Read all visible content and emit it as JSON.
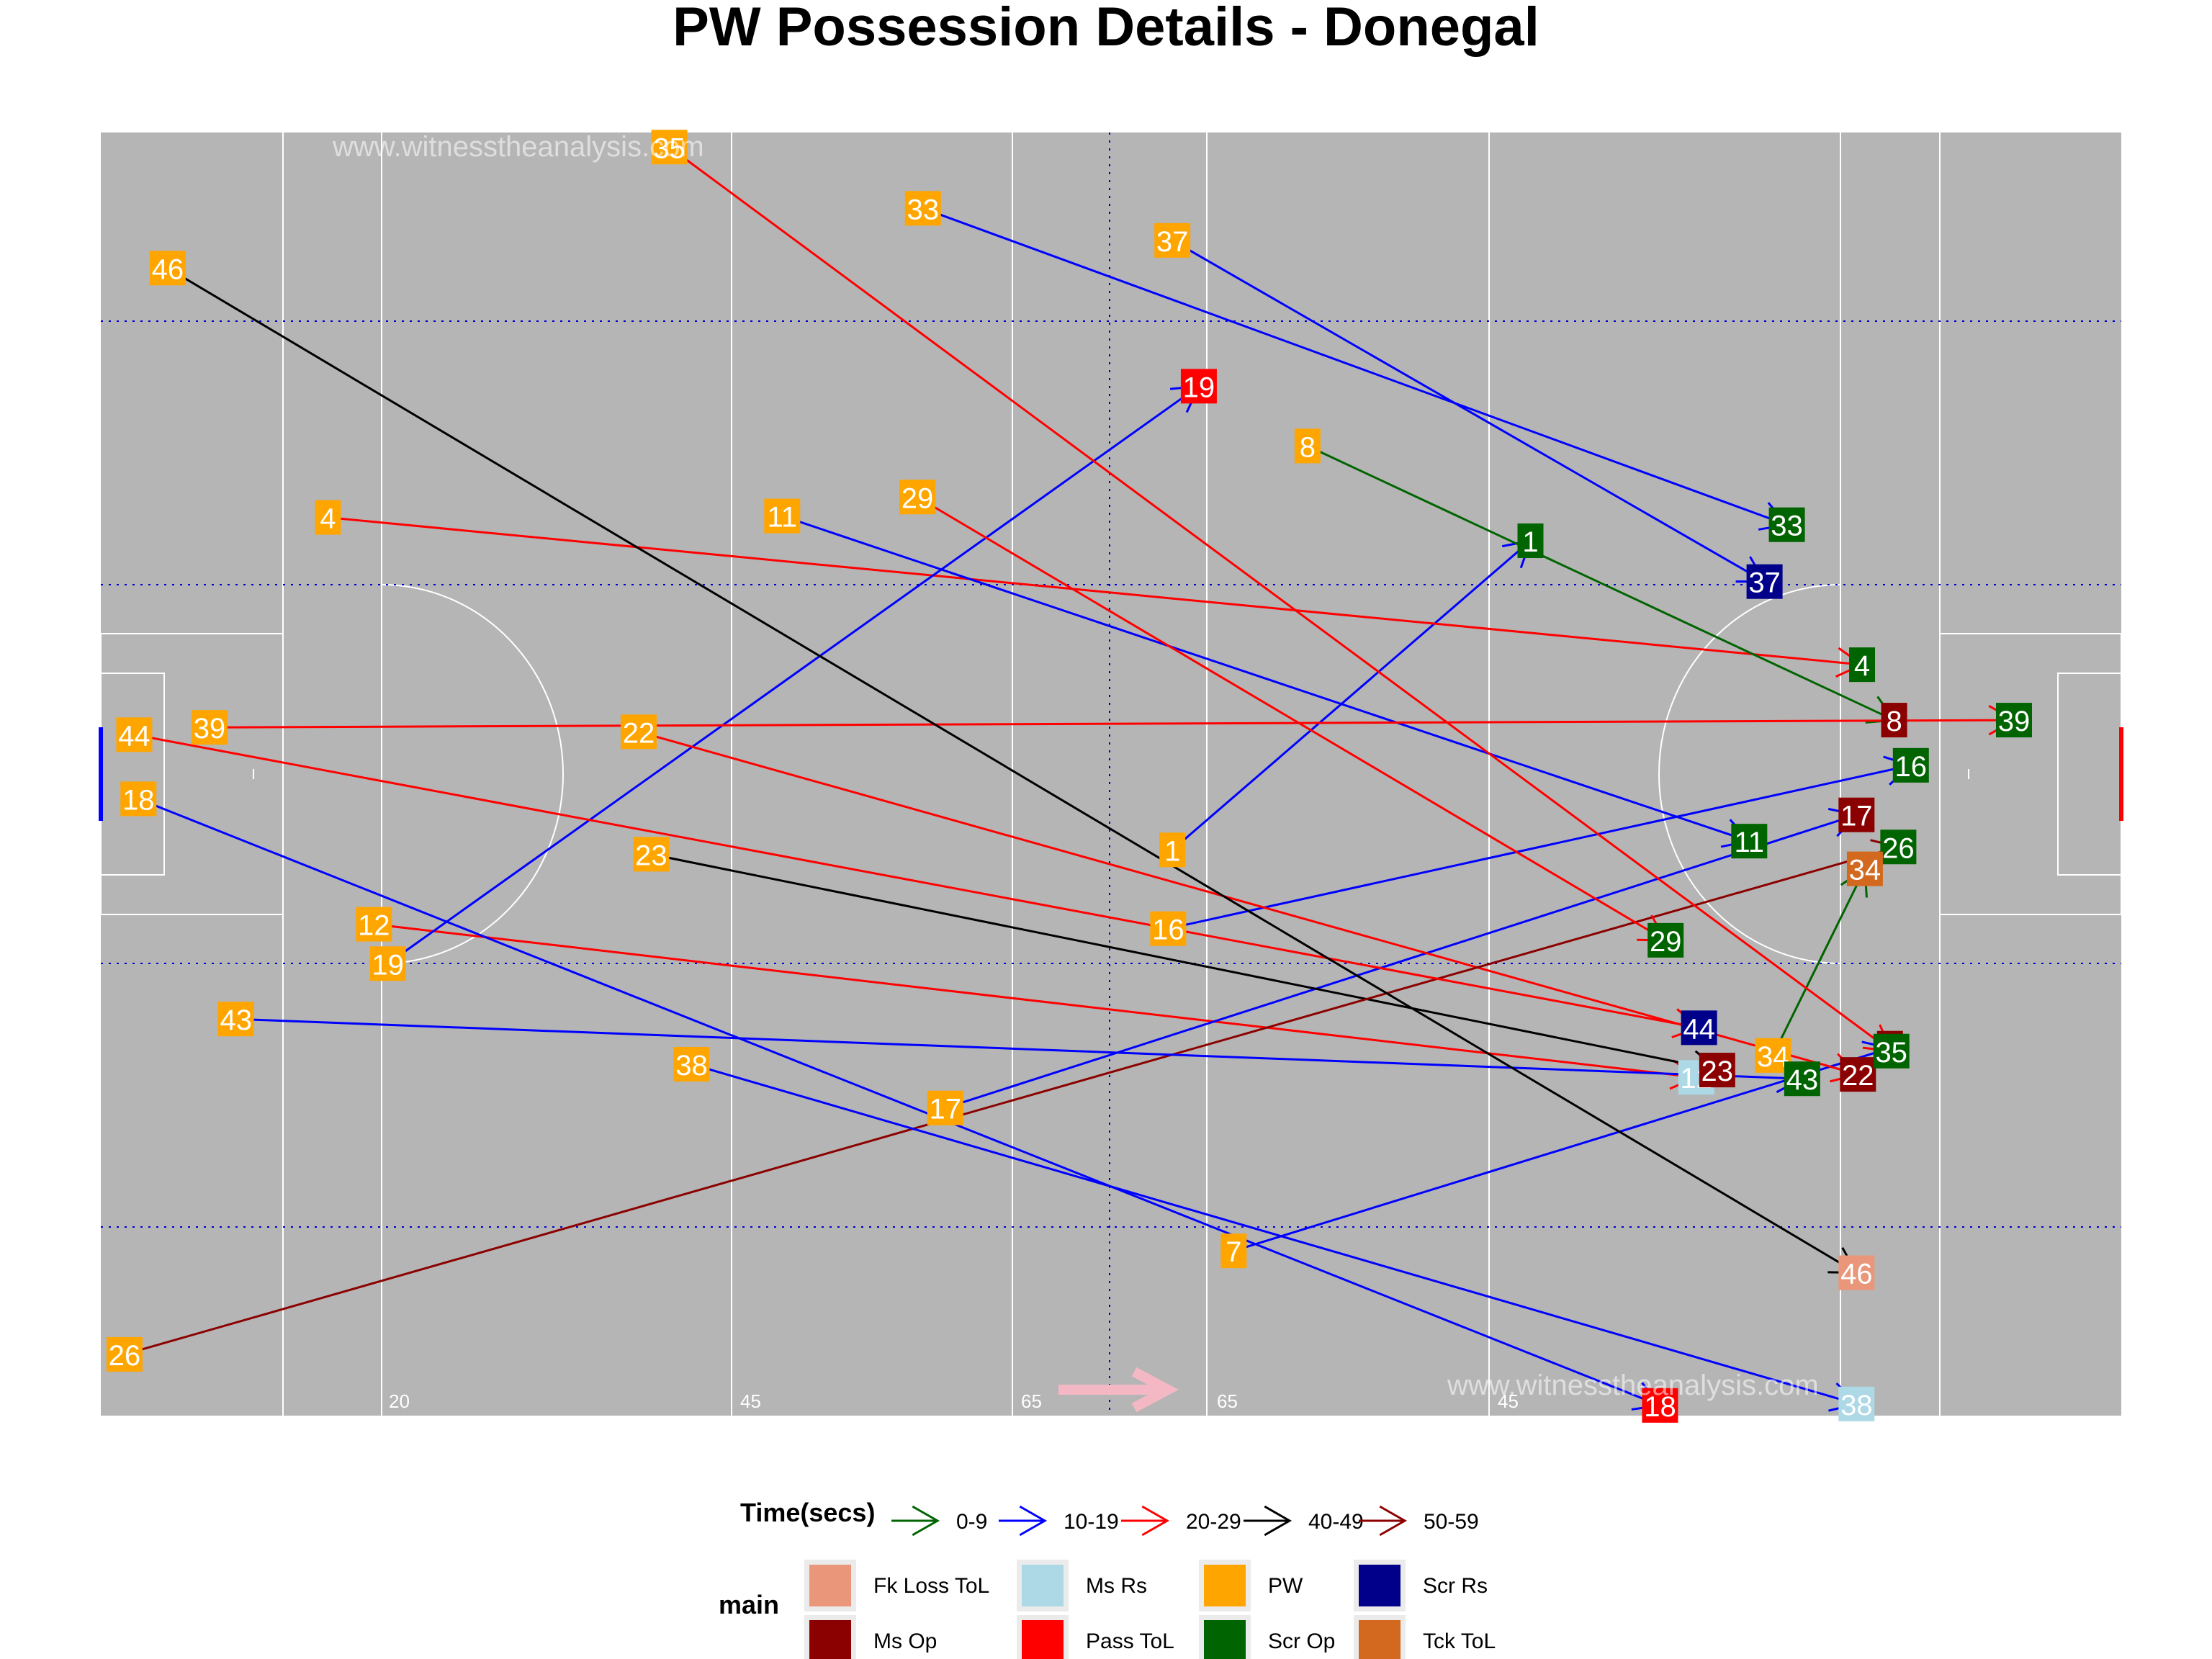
{
  "page": {
    "title": "PW Possession Details - Donegal",
    "watermark": "www.witnesstheanalysis.com"
  },
  "pitch": {
    "distance_labels": [
      "20",
      "45",
      "65",
      "65",
      "45"
    ],
    "colors": {
      "background": "#b5b5b5",
      "lines": "#ffffff",
      "grid": "#0000cc",
      "arrow": "#f4b8c4"
    }
  },
  "legend": {
    "time_title": "Time(secs)",
    "time_items": [
      {
        "label": "0-9",
        "color": "#006400"
      },
      {
        "label": "10-19",
        "color": "#0000ff"
      },
      {
        "label": "20-29",
        "color": "#ff0000"
      },
      {
        "label": "40-49",
        "color": "#000000"
      },
      {
        "label": "50-59",
        "color": "#8b0000"
      }
    ],
    "main_title": "main",
    "main_items": [
      {
        "label": "Fk Loss ToL",
        "color": "#e9967a"
      },
      {
        "label": "Ms Rs",
        "color": "#add8e6"
      },
      {
        "label": "PW",
        "color": "#ffa500"
      },
      {
        "label": "Scr Rs",
        "color": "#00008b"
      },
      {
        "label": "Ms Op",
        "color": "#8b0000"
      },
      {
        "label": "Pass ToL",
        "color": "#ff0000"
      },
      {
        "label": "Scr Op",
        "color": "#006400"
      },
      {
        "label": "Tck ToL",
        "color": "#d2691e"
      }
    ]
  },
  "chart_data": {
    "type": "scatter",
    "title": "PW Possession Details - Donegal",
    "xlim": [
      0,
      145
    ],
    "ylim": [
      0,
      88
    ],
    "time_colors": {
      "0-9": "#006400",
      "10-19": "#0000ff",
      "20-29": "#ff0000",
      "40-49": "#000000",
      "50-59": "#8b0000"
    },
    "main_colors": {
      "Fk Loss ToL": "#e9967a",
      "Ms Rs": "#add8e6",
      "PW": "#ffa500",
      "Scr Rs": "#00008b",
      "Ms Op": "#8b0000",
      "Pass ToL": "#ff0000",
      "Scr Op": "#006400",
      "Tck ToL": "#d2691e"
    },
    "possessions": [
      {
        "id": "1",
        "time": "10-19",
        "outcome": "Scr Op",
        "start": [
          76.9,
          38.8
        ],
        "end": [
          102.6,
          60.0
        ]
      },
      {
        "id": "4",
        "time": "20-29",
        "outcome": "Scr Op",
        "start": [
          16.3,
          61.6
        ],
        "end": [
          126.4,
          51.5
        ]
      },
      {
        "id": "7",
        "time": "10-19",
        "outcome": "Ms Op",
        "start": [
          81.3,
          11.3
        ],
        "end": [
          128.4,
          25.2
        ]
      },
      {
        "id": "8",
        "time": "0-9",
        "outcome": "Ms Op",
        "start": [
          86.6,
          66.5
        ],
        "end": [
          128.7,
          47.7
        ]
      },
      {
        "id": "11",
        "time": "10-19",
        "outcome": "Scr Op",
        "start": [
          48.9,
          61.7
        ],
        "end": [
          118.3,
          39.4
        ]
      },
      {
        "id": "12",
        "time": "20-29",
        "outcome": "Ms Rs",
        "start": [
          19.6,
          33.7
        ],
        "end": [
          114.5,
          23.2
        ]
      },
      {
        "id": "16",
        "time": "10-19",
        "outcome": "Scr Op",
        "start": [
          76.6,
          33.4
        ],
        "end": [
          129.9,
          44.6
        ]
      },
      {
        "id": "17",
        "time": "10-19",
        "outcome": "Ms Op",
        "start": [
          60.6,
          21.1
        ],
        "end": [
          126.0,
          41.2
        ]
      },
      {
        "id": "18",
        "time": "10-19",
        "outcome": "Pass ToL",
        "start": [
          2.7,
          42.3
        ],
        "end": [
          111.9,
          0.7
        ]
      },
      {
        "id": "19",
        "time": "10-19",
        "outcome": "Pass ToL",
        "start": [
          20.6,
          31.0
        ],
        "end": [
          78.8,
          70.6
        ]
      },
      {
        "id": "22",
        "time": "20-29",
        "outcome": "Ms Op",
        "start": [
          38.6,
          46.9
        ],
        "end": [
          126.1,
          23.4
        ]
      },
      {
        "id": "23",
        "time": "40-49",
        "outcome": "Ms Op",
        "start": [
          39.5,
          38.5
        ],
        "end": [
          116.0,
          23.7
        ]
      },
      {
        "id": "26",
        "time": "50-59",
        "outcome": "Scr Op",
        "start": [
          1.7,
          4.2
        ],
        "end": [
          129.0,
          39.0
        ]
      },
      {
        "id": "29",
        "time": "20-29",
        "outcome": "Scr Op",
        "start": [
          58.6,
          63.0
        ],
        "end": [
          112.3,
          32.6
        ]
      },
      {
        "id": "33",
        "time": "10-19",
        "outcome": "Scr Op",
        "start": [
          59.0,
          82.8
        ],
        "end": [
          121.0,
          61.1
        ]
      },
      {
        "id": "34",
        "time": "0-9",
        "outcome": "Tck ToL",
        "start": [
          120.0,
          24.7
        ],
        "end": [
          126.6,
          37.5
        ]
      },
      {
        "id": "35",
        "time": "20-29",
        "outcome": "Scr Op",
        "start": [
          40.8,
          87.0
        ],
        "end": [
          128.5,
          25.0
        ]
      },
      {
        "id": "37",
        "time": "10-19",
        "outcome": "Scr Rs",
        "start": [
          76.9,
          80.6
        ],
        "end": [
          119.4,
          57.2
        ]
      },
      {
        "id": "38",
        "time": "10-19",
        "outcome": "Ms Rs",
        "start": [
          42.4,
          24.1
        ],
        "end": [
          126.0,
          0.8
        ]
      },
      {
        "id": "39",
        "time": "20-29",
        "outcome": "Scr Op",
        "start": [
          7.8,
          47.2
        ],
        "end": [
          137.3,
          47.7
        ]
      },
      {
        "id": "43",
        "time": "10-19",
        "outcome": "Scr Op",
        "start": [
          9.7,
          27.2
        ],
        "end": [
          122.1,
          23.1
        ]
      },
      {
        "id": "44",
        "time": "20-29",
        "outcome": "Scr Rs",
        "start": [
          2.4,
          46.7
        ],
        "end": [
          114.7,
          26.6
        ]
      },
      {
        "id": "46",
        "time": "40-49",
        "outcome": "Fk Loss ToL",
        "start": [
          4.8,
          78.7
        ],
        "end": [
          126.0,
          9.8
        ]
      }
    ]
  }
}
